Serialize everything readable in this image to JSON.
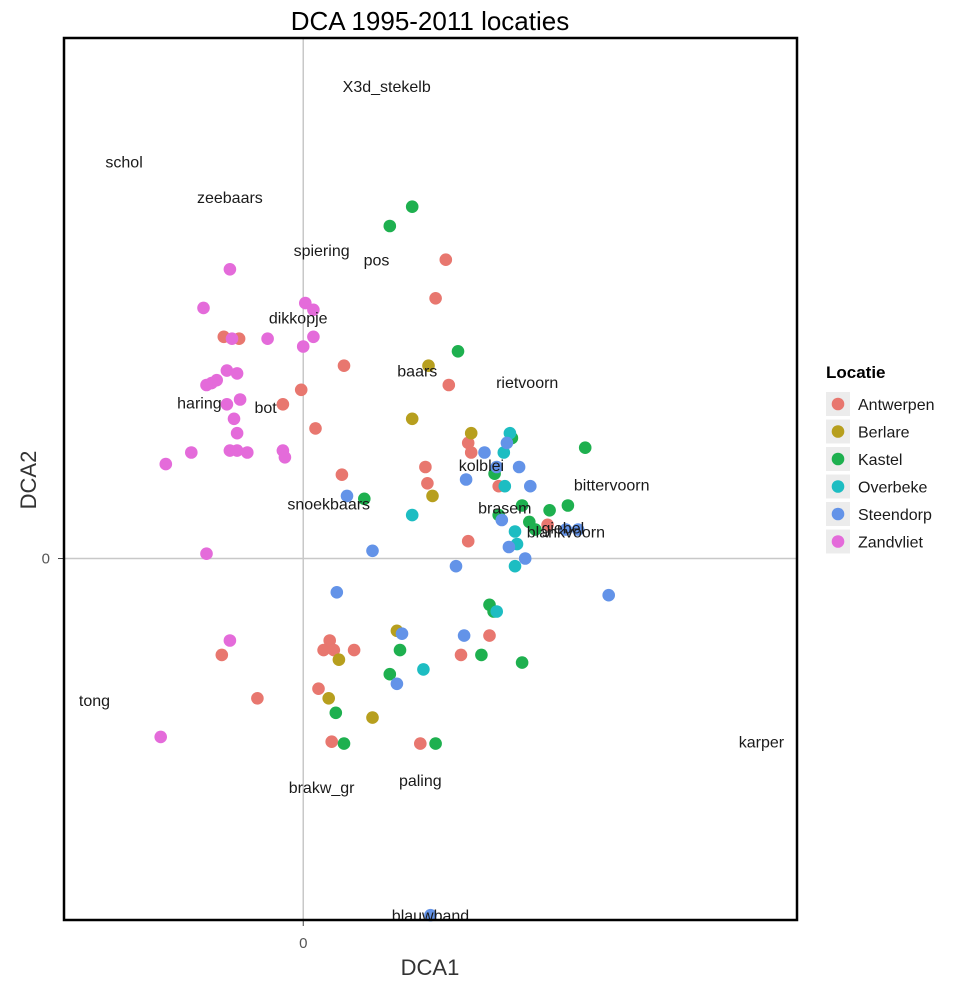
{
  "chart_data": {
    "type": "scatter",
    "title": "DCA 1995-2011 locaties",
    "xlabel": "DCA1",
    "ylabel": "DCA2",
    "x_ticks": [
      0
    ],
    "y_ticks": [
      0
    ],
    "xlim": [
      -2.35,
      4.85
    ],
    "ylim": [
      -3.75,
      5.4
    ],
    "grid": "zero-lines only",
    "legend": {
      "title": "Locatie",
      "position": "right",
      "entries": [
        "Antwerpen",
        "Berlare",
        "Kastel",
        "Overbeke",
        "Steendorp",
        "Zandvliet"
      ]
    },
    "colors": {
      "Antwerpen": "#E8776F",
      "Berlare": "#B79F1E",
      "Kastel": "#1EB04F",
      "Overbeke": "#1DBDC2",
      "Steendorp": "#6393E8",
      "Zandvliet": "#E46BDA",
      "axis_zero_line": "#c8c8c8",
      "panel_border": "#000000"
    },
    "series": [
      {
        "name": "Antwerpen",
        "points": [
          [
            1.4,
            3.1
          ],
          [
            1.3,
            2.7
          ],
          [
            1.43,
            1.8
          ],
          [
            1.62,
            1.2
          ],
          [
            1.65,
            1.1
          ],
          [
            1.2,
            0.95
          ],
          [
            1.22,
            0.78
          ],
          [
            1.92,
            0.75
          ],
          [
            2.4,
            0.35
          ],
          [
            1.62,
            0.18
          ],
          [
            -0.78,
            2.3
          ],
          [
            -0.63,
            2.28
          ],
          [
            0.4,
            2.0
          ],
          [
            -0.2,
            1.6
          ],
          [
            -0.02,
            1.75
          ],
          [
            0.12,
            1.35
          ],
          [
            0.38,
            0.87
          ],
          [
            -0.8,
            -1.0
          ],
          [
            -0.45,
            -1.45
          ],
          [
            0.2,
            -0.95
          ],
          [
            0.26,
            -0.85
          ],
          [
            0.3,
            -0.95
          ],
          [
            0.5,
            -0.95
          ],
          [
            0.15,
            -1.35
          ],
          [
            0.28,
            -1.9
          ],
          [
            1.15,
            -1.92
          ],
          [
            1.55,
            -1.0
          ],
          [
            1.83,
            -0.8
          ]
        ]
      },
      {
        "name": "Berlare",
        "points": [
          [
            1.23,
            2.0
          ],
          [
            1.07,
            1.45
          ],
          [
            1.65,
            1.3
          ],
          [
            1.27,
            0.65
          ],
          [
            0.92,
            -0.75
          ],
          [
            0.35,
            -1.05
          ],
          [
            0.25,
            -1.45
          ],
          [
            0.68,
            -1.65
          ]
        ]
      },
      {
        "name": "Kastel",
        "points": [
          [
            1.07,
            3.65
          ],
          [
            0.85,
            3.45
          ],
          [
            1.52,
            2.15
          ],
          [
            2.05,
            1.25
          ],
          [
            2.77,
            1.15
          ],
          [
            1.88,
            0.88
          ],
          [
            2.15,
            0.55
          ],
          [
            2.42,
            0.5
          ],
          [
            2.6,
            0.55
          ],
          [
            1.92,
            0.45
          ],
          [
            2.22,
            0.38
          ],
          [
            2.28,
            0.3
          ],
          [
            0.6,
            0.62
          ],
          [
            0.95,
            -0.95
          ],
          [
            1.75,
            -1.0
          ],
          [
            1.83,
            -0.48
          ],
          [
            1.87,
            -0.55
          ],
          [
            2.15,
            -1.08
          ],
          [
            0.85,
            -1.2
          ],
          [
            0.32,
            -1.6
          ],
          [
            0.4,
            -1.92
          ],
          [
            1.3,
            -1.92
          ]
        ]
      },
      {
        "name": "Overbeke",
        "points": [
          [
            2.03,
            1.3
          ],
          [
            1.97,
            1.1
          ],
          [
            1.98,
            0.75
          ],
          [
            2.08,
            0.28
          ],
          [
            2.1,
            0.15
          ],
          [
            2.08,
            -0.08
          ],
          [
            1.07,
            0.45
          ],
          [
            1.18,
            -1.15
          ],
          [
            1.9,
            -0.55
          ]
        ]
      },
      {
        "name": "Steendorp",
        "points": [
          [
            1.78,
            1.1
          ],
          [
            2.0,
            1.2
          ],
          [
            1.9,
            0.95
          ],
          [
            2.12,
            0.95
          ],
          [
            2.23,
            0.75
          ],
          [
            1.6,
            0.82
          ],
          [
            1.95,
            0.4
          ],
          [
            2.02,
            0.12
          ],
          [
            2.18,
            0.0
          ],
          [
            2.7,
            0.3
          ],
          [
            2.58,
            0.3
          ],
          [
            1.5,
            -0.08
          ],
          [
            0.68,
            0.08
          ],
          [
            0.43,
            0.65
          ],
          [
            0.33,
            -0.35
          ],
          [
            3.0,
            -0.38
          ],
          [
            1.58,
            -0.8
          ],
          [
            0.97,
            -0.78
          ],
          [
            0.92,
            -1.3
          ],
          [
            1.25,
            -3.7
          ]
        ]
      },
      {
        "name": "Zandvliet",
        "points": [
          [
            -0.72,
            3.0
          ],
          [
            -0.98,
            2.6
          ],
          [
            -0.7,
            2.28
          ],
          [
            -0.35,
            2.28
          ],
          [
            0.02,
            2.65
          ],
          [
            0.1,
            2.58
          ],
          [
            0.0,
            2.2
          ],
          [
            0.1,
            2.3
          ],
          [
            -0.75,
            1.95
          ],
          [
            -0.65,
            1.92
          ],
          [
            -0.85,
            1.85
          ],
          [
            -0.9,
            1.82
          ],
          [
            -0.95,
            1.8
          ],
          [
            -0.75,
            1.6
          ],
          [
            -0.62,
            1.65
          ],
          [
            -0.68,
            1.45
          ],
          [
            -0.65,
            1.3
          ],
          [
            -1.1,
            1.1
          ],
          [
            -1.35,
            0.98
          ],
          [
            -0.72,
            1.12
          ],
          [
            -0.65,
            1.12
          ],
          [
            -0.55,
            1.1
          ],
          [
            -0.2,
            1.12
          ],
          [
            -0.18,
            1.05
          ],
          [
            -0.95,
            0.05
          ],
          [
            -0.72,
            -0.85
          ],
          [
            -1.4,
            -1.85
          ]
        ]
      }
    ],
    "labels": [
      {
        "text": "X3d_stekelb",
        "x": 0.82,
        "y": 4.9
      },
      {
        "text": "schol",
        "x": -1.76,
        "y": 4.12
      },
      {
        "text": "zeebaars",
        "x": -0.72,
        "y": 3.75
      },
      {
        "text": "spiering",
        "x": 0.18,
        "y": 3.2
      },
      {
        "text": "pos",
        "x": 0.72,
        "y": 3.1
      },
      {
        "text": "dikkopje",
        "x": -0.05,
        "y": 2.5
      },
      {
        "text": "baars",
        "x": 1.12,
        "y": 1.95
      },
      {
        "text": "rietvoorn",
        "x": 2.2,
        "y": 1.83
      },
      {
        "text": "haring",
        "x": -1.02,
        "y": 1.62
      },
      {
        "text": "bot",
        "x": -0.37,
        "y": 1.57
      },
      {
        "text": "kolblei",
        "x": 1.75,
        "y": 0.97
      },
      {
        "text": "bittervoorn",
        "x": 3.03,
        "y": 0.77
      },
      {
        "text": "snoekbaars",
        "x": 0.25,
        "y": 0.57
      },
      {
        "text": "brasem",
        "x": 1.98,
        "y": 0.53
      },
      {
        "text": "blankvoorn",
        "x": 2.58,
        "y": 0.28
      },
      {
        "text": "giebel",
        "x": 2.55,
        "y": 0.32
      },
      {
        "text": "tong",
        "x": -2.05,
        "y": -1.47
      },
      {
        "text": "karper",
        "x": 4.5,
        "y": -1.9
      },
      {
        "text": "paling",
        "x": 1.15,
        "y": -2.3
      },
      {
        "text": "brakw_gr",
        "x": 0.18,
        "y": -2.37
      },
      {
        "text": "blauwband",
        "x": 1.25,
        "y": -3.7
      }
    ]
  }
}
